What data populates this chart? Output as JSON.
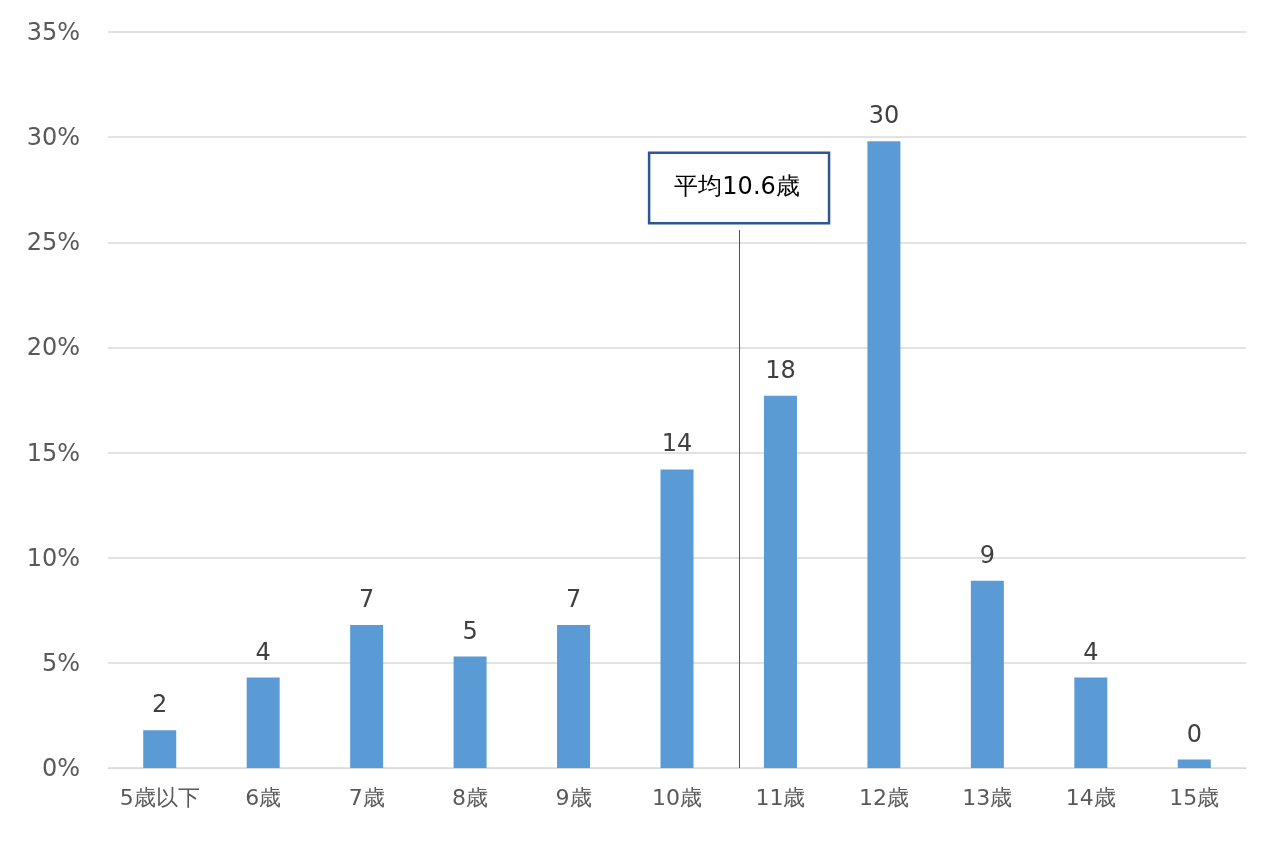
{
  "chart_data": {
    "type": "bar",
    "x": [
      5,
      6,
      7,
      8,
      9,
      10,
      11,
      12,
      13,
      14,
      15
    ],
    "values": [
      1.8,
      4.3,
      6.8,
      5.3,
      6.8,
      14.2,
      17.7,
      29.8,
      8.9,
      4.3,
      0.4
    ],
    "value_labels": [
      "2",
      "4",
      "7",
      "5",
      "7",
      "14",
      "18",
      "30",
      "9",
      "4",
      "0"
    ],
    "color": "#5b9bd5",
    "xlim": [
      4.5,
      15.5
    ],
    "xticks": [
      {
        "value": 5,
        "label": "5歳以下"
      },
      {
        "value": 6,
        "label": "6歳"
      },
      {
        "value": 7,
        "label": "7歳"
      },
      {
        "value": 8,
        "label": "8歳"
      },
      {
        "value": 9,
        "label": "9歳"
      },
      {
        "value": 10,
        "label": "10歳"
      },
      {
        "value": 11,
        "label": "11歳"
      },
      {
        "value": 12,
        "label": "12歳"
      },
      {
        "value": 13,
        "label": "13歳"
      },
      {
        "value": 14,
        "label": "14歳"
      },
      {
        "value": 15,
        "label": "15歳"
      }
    ],
    "ylim": [
      0,
      35
    ],
    "yticks": [
      {
        "value": 0,
        "label": "0%"
      },
      {
        "value": 5,
        "label": "5%"
      },
      {
        "value": 10,
        "label": "10%"
      },
      {
        "value": 15,
        "label": "15%"
      },
      {
        "value": 20,
        "label": "20%"
      },
      {
        "value": 25,
        "label": "25%"
      },
      {
        "value": 30,
        "label": "30%"
      },
      {
        "value": 35,
        "label": "35%"
      }
    ],
    "grid": "y",
    "ref_lines": [
      {
        "axis": "x",
        "value": 10.6,
        "label": "平均10.6歳",
        "color": "#2f5597"
      }
    ]
  }
}
